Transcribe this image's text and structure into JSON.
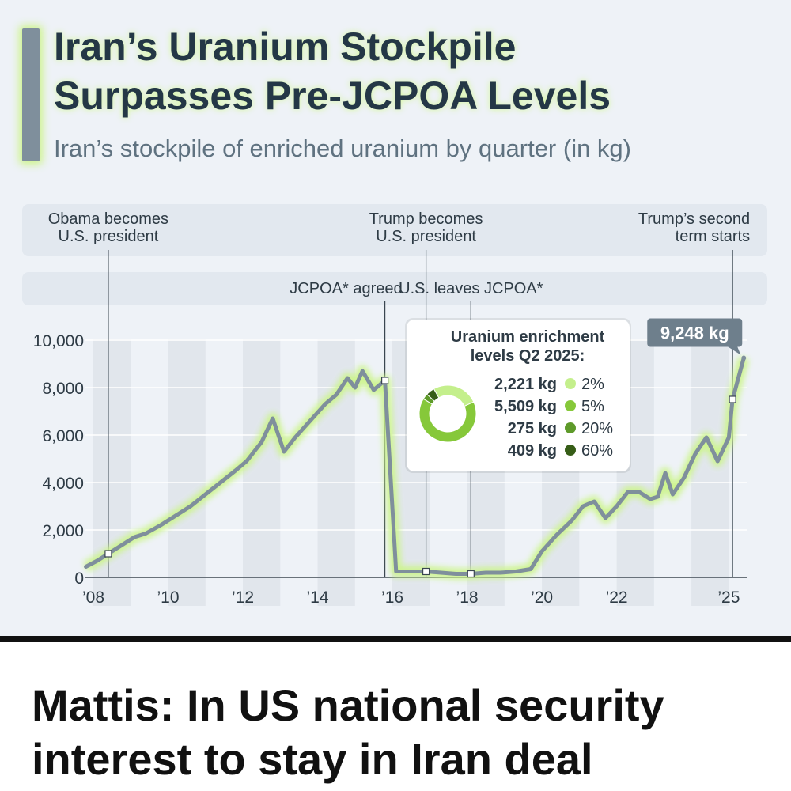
{
  "title": "Iran’s Uranium Stockpile\nSurpasses Pre-JCPOA Levels",
  "subtitle": "Iran’s stockpile of enriched uranium by quarter (in kg)",
  "headline": "Mattis: In US national security\ninterest to stay in Iran deal",
  "colors": {
    "line": "#7f8f9c",
    "glow": "#ccf58a",
    "title": "#243746",
    "accent_label_bg": "#6e7f8c"
  },
  "chart_data": {
    "type": "line",
    "title": "Iran’s Uranium Stockpile Surpasses Pre-JCPOA Levels",
    "subtitle": "Iran’s stockpile of enriched uranium by quarter (in kg)",
    "xlabel": "",
    "ylabel": "",
    "unit": "kg",
    "ylim": [
      0,
      10000
    ],
    "xlim": [
      2008,
      2025.5
    ],
    "y_ticks": [
      {
        "value": 0,
        "label": "0"
      },
      {
        "value": 2000,
        "label": "2,000"
      },
      {
        "value": 4000,
        "label": "4,000"
      },
      {
        "value": 6000,
        "label": "6,000"
      },
      {
        "value": 8000,
        "label": "8,000"
      },
      {
        "value": 10000,
        "label": "10,000"
      }
    ],
    "x_ticks": [
      {
        "value": 2008,
        "label": "’08"
      },
      {
        "value": 2010,
        "label": "’10"
      },
      {
        "value": 2012,
        "label": "’12"
      },
      {
        "value": 2014,
        "label": "’14"
      },
      {
        "value": 2016,
        "label": "’16"
      },
      {
        "value": 2018,
        "label": "’18"
      },
      {
        "value": 2020,
        "label": "’20"
      },
      {
        "value": 2022,
        "label": "’22"
      },
      {
        "value": 2025,
        "label": "’25"
      }
    ],
    "series": [
      {
        "name": "Enriched uranium stockpile (kg)",
        "points": [
          [
            2007.8,
            450
          ],
          [
            2008.1,
            700
          ],
          [
            2008.4,
            1000
          ],
          [
            2008.8,
            1400
          ],
          [
            2009.1,
            1700
          ],
          [
            2009.4,
            1850
          ],
          [
            2009.8,
            2200
          ],
          [
            2010.2,
            2600
          ],
          [
            2010.6,
            3000
          ],
          [
            2011.0,
            3500
          ],
          [
            2011.4,
            4000
          ],
          [
            2011.8,
            4500
          ],
          [
            2012.1,
            4900
          ],
          [
            2012.5,
            5700
          ],
          [
            2012.8,
            6700
          ],
          [
            2013.1,
            5300
          ],
          [
            2013.4,
            5900
          ],
          [
            2013.8,
            6600
          ],
          [
            2014.2,
            7300
          ],
          [
            2014.5,
            7700
          ],
          [
            2014.8,
            8400
          ],
          [
            2015.0,
            8000
          ],
          [
            2015.2,
            8700
          ],
          [
            2015.5,
            7900
          ],
          [
            2015.8,
            8300
          ],
          [
            2016.1,
            250
          ],
          [
            2016.5,
            250
          ],
          [
            2016.9,
            250
          ],
          [
            2017.3,
            200
          ],
          [
            2017.7,
            150
          ],
          [
            2018.1,
            150
          ],
          [
            2018.5,
            200
          ],
          [
            2018.9,
            200
          ],
          [
            2019.3,
            250
          ],
          [
            2019.7,
            350
          ],
          [
            2020.0,
            1100
          ],
          [
            2020.4,
            1800
          ],
          [
            2020.8,
            2400
          ],
          [
            2021.1,
            3000
          ],
          [
            2021.4,
            3200
          ],
          [
            2021.7,
            2500
          ],
          [
            2022.0,
            3000
          ],
          [
            2022.3,
            3600
          ],
          [
            2022.6,
            3600
          ],
          [
            2022.9,
            3300
          ],
          [
            2023.1,
            3400
          ],
          [
            2023.3,
            4400
          ],
          [
            2023.5,
            3500
          ],
          [
            2023.8,
            4200
          ],
          [
            2024.1,
            5200
          ],
          [
            2024.4,
            5900
          ],
          [
            2024.7,
            4900
          ],
          [
            2025.0,
            5900
          ],
          [
            2025.1,
            7500
          ],
          [
            2025.4,
            9248
          ]
        ]
      }
    ],
    "events": [
      {
        "label": "Obama becomes\nU.S. president",
        "x": 2008.4,
        "row": "upper",
        "align": "center"
      },
      {
        "label": "JCPOA* agreed",
        "x": 2015.8,
        "row": "lower",
        "align": "right"
      },
      {
        "label": "Trump becomes\nU.S. president",
        "x": 2016.9,
        "row": "upper",
        "align": "center"
      },
      {
        "label": "U.S. leaves JCPOA*",
        "x": 2018.1,
        "row": "lower",
        "align": "center"
      },
      {
        "label": "Trump’s second\nterm starts",
        "x": 2025.1,
        "row": "upper",
        "align": "right"
      }
    ],
    "annotations": [
      {
        "text": "9,248 kg",
        "x": 2025.4,
        "y": 9248
      }
    ],
    "inset": {
      "type": "pie",
      "title": "Uranium enrichment\nlevels Q2 2025:",
      "slices": [
        {
          "value_label": "2,221 kg",
          "value": 2221,
          "level": "2%",
          "color": "#c4ef8c"
        },
        {
          "value_label": "5,509 kg",
          "value": 5509,
          "level": "5%",
          "color": "#86c83a"
        },
        {
          "value_label": "275 kg",
          "value": 275,
          "level": "20%",
          "color": "#5e9a2a"
        },
        {
          "value_label": "409 kg",
          "value": 409,
          "level": "60%",
          "color": "#365d17"
        }
      ]
    }
  }
}
